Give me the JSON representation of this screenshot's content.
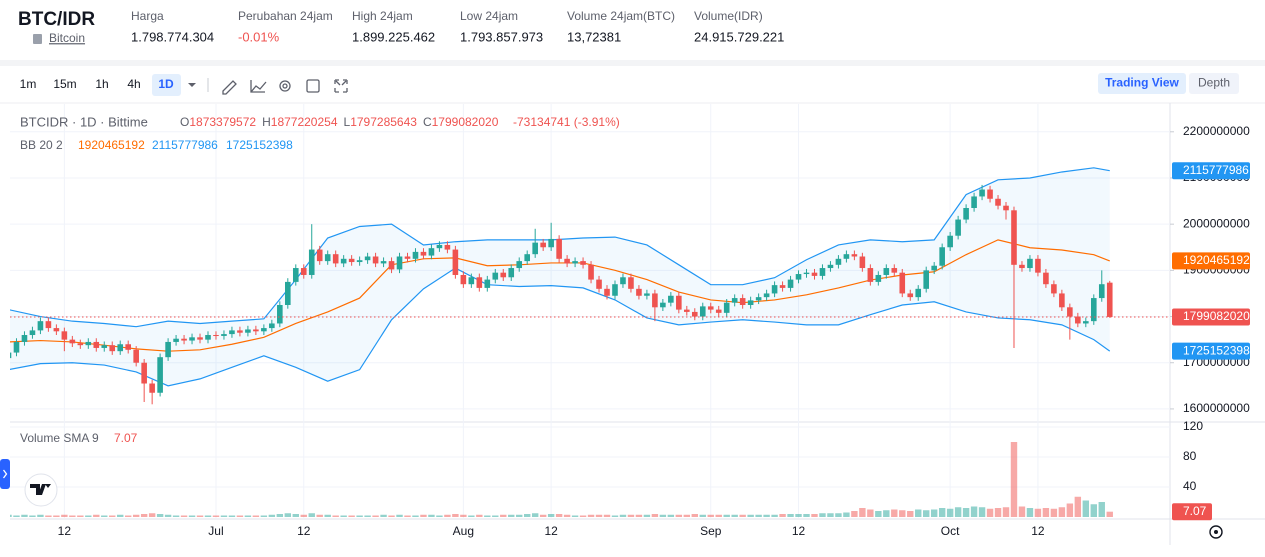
{
  "header": {
    "pair": "BTC/IDR",
    "asset": "Bitcoin",
    "stats": [
      {
        "label": "Harga",
        "value": "1.798.774.304"
      },
      {
        "label": "Perubahan 24jam",
        "value": "-0.01%"
      },
      {
        "label": "High 24jam",
        "value": "1.899.225.462"
      },
      {
        "label": "Low 24jam",
        "value": "1.793.857.973"
      },
      {
        "label": "Volume 24jam(BTC)",
        "value": "13,72381"
      },
      {
        "label": "Volume(IDR)",
        "value": "24.915.729.221"
      }
    ]
  },
  "toolbar": {
    "intervals": [
      "1m",
      "15m",
      "1h",
      "4h",
      "1D"
    ],
    "views": [
      "Trading View",
      "Depth"
    ]
  },
  "chart_data": {
    "type": "candlestick",
    "legend_title": "BTCIDR · 1D · Bittime",
    "ohlc_labels": [
      "O",
      "H",
      "L",
      "C"
    ],
    "change_text": "-73134741 (-3.91%)",
    "indicator_label": "BB 20 2",
    "volume_label": "Volume SMA 9",
    "up_color": "#26a69a",
    "down_color": "#ef5350",
    "band_colors": {
      "upper": "#2196f3",
      "middle": "#ff6d00",
      "lower": "#2196f3"
    },
    "candles": {
      "open": [
        1710000000.0,
        1722000000.0,
        1745000000.0,
        1760000000.0,
        1770000000.0,
        1790000000.0,
        1775000000.0,
        1768000000.0,
        1750000000.0,
        1742000000.0,
        1738000000.0,
        1745000000.0,
        1732000000.0,
        1738000000.0,
        1725000000.0,
        1740000000.0,
        1728000000.0,
        1700000000.0,
        1655000000.0,
        1635000000.0,
        1712000000.0,
        1745000000.0,
        1752000000.0,
        1748000000.0,
        1755000000.0,
        1750000000.0,
        1760000000.0,
        1758000000.0,
        1762000000.0,
        1770000000.0,
        1765000000.0,
        1772000000.0,
        1768000000.0,
        1775000000.0,
        1785000000.0,
        1825000000.0,
        1875000000.0,
        1905000000.0,
        1890000000.0,
        1945000000.0,
        1920000000.0,
        1935000000.0,
        1915000000.0,
        1925000000.0,
        1918000000.0,
        1922000000.0,
        1930000000.0,
        1915000000.0,
        1920000000.0,
        1902000000.0,
        1930000000.0,
        1925000000.0,
        1940000000.0,
        1932000000.0,
        1948000000.0,
        1955000000.0,
        1945000000.0,
        1890000000.0,
        1870000000.0,
        1885000000.0,
        1862000000.0,
        1880000000.0,
        1895000000.0,
        1885000000.0,
        1905000000.0,
        1920000000.0,
        1935000000.0,
        1960000000.0,
        1950000000.0,
        1968000000.0,
        1925000000.0,
        1915000000.0,
        1920000000.0,
        1912000000.0,
        1880000000.0,
        1860000000.0,
        1845000000.0,
        1870000000.0,
        1885000000.0,
        1860000000.0,
        1845000000.0,
        1850000000.0,
        1820000000.0,
        1830000000.0,
        1845000000.0,
        1815000000.0,
        1810000000.0,
        1800000000.0,
        1822000000.0,
        1815000000.0,
        1808000000.0,
        1830000000.0,
        1840000000.0,
        1825000000.0,
        1835000000.0,
        1842000000.0,
        1850000000.0,
        1868000000.0,
        1862000000.0,
        1880000000.0,
        1892000000.0,
        1895000000.0,
        1888000000.0,
        1905000000.0,
        1912000000.0,
        1925000000.0,
        1935000000.0,
        1930000000.0,
        1905000000.0,
        1875000000.0,
        1890000000.0,
        1905000000.0,
        1895000000.0,
        1850000000.0,
        1842000000.0,
        1860000000.0,
        1900000000.0,
        1910000000.0,
        1950000000.0,
        1975000000.0,
        2010000000.0,
        2035000000.0,
        2060000000.0,
        2075000000.0,
        2055000000.0,
        2040000000.0,
        2030000000.0,
        1912000000.0,
        1905000000.0,
        1925000000.0,
        1895000000.0,
        1870000000.0,
        1850000000.0,
        1820000000.0,
        1800000000.0,
        1785000000.0,
        1790000000.0,
        1840000000.0,
        1873379572
      ],
      "high": [
        1730000000.0,
        1753000000.0,
        1768000000.0,
        1778000000.0,
        1798000000.0,
        1798000000.0,
        1783000000.0,
        1776000000.0,
        1758000000.0,
        1750000000.0,
        1753000000.0,
        1753000000.0,
        1746000000.0,
        1746000000.0,
        1748000000.0,
        1748000000.0,
        1736000000.0,
        1708000000.0,
        1663000000.0,
        1720000000.0,
        1753000000.0,
        1760000000.0,
        1760000000.0,
        1763000000.0,
        1763000000.0,
        1768000000.0,
        1768000000.0,
        1770000000.0,
        1778000000.0,
        1778000000.0,
        1780000000.0,
        1780000000.0,
        1783000000.0,
        1793000000.0,
        1833000000.0,
        1883000000.0,
        1913000000.0,
        1913000000.0,
        2000000000.0,
        1953000000.0,
        1943000000.0,
        1943000000.0,
        1933000000.0,
        1933000000.0,
        1930000000.0,
        1938000000.0,
        1938000000.0,
        1928000000.0,
        1928000000.0,
        1938000000.0,
        1938000000.0,
        1948000000.0,
        1948000000.0,
        1956000000.0,
        1963000000.0,
        1963000000.0,
        1953000000.0,
        1898000000.0,
        1893000000.0,
        1893000000.0,
        1888000000.0,
        1903000000.0,
        1903000000.0,
        1913000000.0,
        1928000000.0,
        1943000000.0,
        1990000000.0,
        1968000000.0,
        2003000000.0,
        1976000000.0,
        1933000000.0,
        1928000000.0,
        1928000000.0,
        1920000000.0,
        1888000000.0,
        1868000000.0,
        1878000000.0,
        1893000000.0,
        1893000000.0,
        1868000000.0,
        1858000000.0,
        1858000000.0,
        1838000000.0,
        1853000000.0,
        1853000000.0,
        1823000000.0,
        1818000000.0,
        1830000000.0,
        1830000000.0,
        1823000000.0,
        1838000000.0,
        1848000000.0,
        1848000000.0,
        1843000000.0,
        1850000000.0,
        1858000000.0,
        1876000000.0,
        1876000000.0,
        1888000000.0,
        1900000000.0,
        1903000000.0,
        1903000000.0,
        1913000000.0,
        1920000000.0,
        1933000000.0,
        1943000000.0,
        1943000000.0,
        1938000000.0,
        1913000000.0,
        1898000000.0,
        1913000000.0,
        1913000000.0,
        1903000000.0,
        1858000000.0,
        1868000000.0,
        1908000000.0,
        1918000000.0,
        1958000000.0,
        1983000000.0,
        2018000000.0,
        2043000000.0,
        2068000000.0,
        2085000000.0,
        2083000000.0,
        2063000000.0,
        2048000000.0,
        2038000000.0,
        1920000000.0,
        1933000000.0,
        1933000000.0,
        1903000000.0,
        1878000000.0,
        1858000000.0,
        1828000000.0,
        1808000000.0,
        1798000000.0,
        1848000000.0,
        1900000000.0,
        1877220254
      ],
      "low": [
        1702000000.0,
        1714000000.0,
        1737000000.0,
        1752000000.0,
        1762000000.0,
        1767000000.0,
        1760000000.0,
        1725000000.0,
        1734000000.0,
        1730000000.0,
        1730000000.0,
        1724000000.0,
        1724000000.0,
        1717000000.0,
        1717000000.0,
        1720000000.0,
        1692000000.0,
        1615000000.0,
        1610000000.0,
        1627000000.0,
        1704000000.0,
        1737000000.0,
        1740000000.0,
        1740000000.0,
        1742000000.0,
        1742000000.0,
        1750000000.0,
        1750000000.0,
        1754000000.0,
        1757000000.0,
        1757000000.0,
        1760000000.0,
        1760000000.0,
        1767000000.0,
        1777000000.0,
        1817000000.0,
        1867000000.0,
        1882000000.0,
        1882000000.0,
        1912000000.0,
        1912000000.0,
        1907000000.0,
        1907000000.0,
        1910000000.0,
        1910000000.0,
        1914000000.0,
        1907000000.0,
        1907000000.0,
        1894000000.0,
        1894000000.0,
        1917000000.0,
        1917000000.0,
        1924000000.0,
        1924000000.0,
        1940000000.0,
        1937000000.0,
        1882000000.0,
        1862000000.0,
        1862000000.0,
        1854000000.0,
        1854000000.0,
        1872000000.0,
        1877000000.0,
        1877000000.0,
        1897000000.0,
        1912000000.0,
        1927000000.0,
        1942000000.0,
        1942000000.0,
        1917000000.0,
        1907000000.0,
        1907000000.0,
        1904000000.0,
        1872000000.0,
        1852000000.0,
        1837000000.0,
        1837000000.0,
        1862000000.0,
        1852000000.0,
        1837000000.0,
        1837000000.0,
        1790000000.0,
        1812000000.0,
        1822000000.0,
        1807000000.0,
        1802000000.0,
        1792000000.0,
        1792000000.0,
        1807000000.0,
        1800000000.0,
        1800000000.0,
        1822000000.0,
        1817000000.0,
        1817000000.0,
        1827000000.0,
        1834000000.0,
        1842000000.0,
        1854000000.0,
        1854000000.0,
        1872000000.0,
        1884000000.0,
        1880000000.0,
        1880000000.0,
        1897000000.0,
        1904000000.0,
        1917000000.0,
        1922000000.0,
        1897000000.0,
        1867000000.0,
        1867000000.0,
        1882000000.0,
        1887000000.0,
        1842000000.0,
        1834000000.0,
        1834000000.0,
        1852000000.0,
        1892000000.0,
        1902000000.0,
        1942000000.0,
        1967000000.0,
        2002000000.0,
        2027000000.0,
        2052000000.0,
        2047000000.0,
        2032000000.0,
        2010000000.0,
        1732000000.0,
        1897000000.0,
        1897000000.0,
        1887000000.0,
        1862000000.0,
        1842000000.0,
        1812000000.0,
        1750000000.0,
        1777000000.0,
        1777000000.0,
        1782000000.0,
        1832000000.0,
        1797285643
      ],
      "close": [
        1722000000.0,
        1745000000.0,
        1760000000.0,
        1770000000.0,
        1790000000.0,
        1775000000.0,
        1768000000.0,
        1750000000.0,
        1742000000.0,
        1738000000.0,
        1745000000.0,
        1732000000.0,
        1738000000.0,
        1725000000.0,
        1740000000.0,
        1728000000.0,
        1700000000.0,
        1655000000.0,
        1635000000.0,
        1712000000.0,
        1745000000.0,
        1752000000.0,
        1748000000.0,
        1755000000.0,
        1750000000.0,
        1760000000.0,
        1758000000.0,
        1762000000.0,
        1770000000.0,
        1765000000.0,
        1772000000.0,
        1768000000.0,
        1775000000.0,
        1785000000.0,
        1825000000.0,
        1875000000.0,
        1905000000.0,
        1890000000.0,
        1945000000.0,
        1920000000.0,
        1935000000.0,
        1915000000.0,
        1925000000.0,
        1918000000.0,
        1922000000.0,
        1930000000.0,
        1915000000.0,
        1920000000.0,
        1902000000.0,
        1930000000.0,
        1925000000.0,
        1940000000.0,
        1932000000.0,
        1948000000.0,
        1955000000.0,
        1945000000.0,
        1890000000.0,
        1870000000.0,
        1885000000.0,
        1862000000.0,
        1880000000.0,
        1895000000.0,
        1885000000.0,
        1905000000.0,
        1920000000.0,
        1935000000.0,
        1960000000.0,
        1950000000.0,
        1968000000.0,
        1925000000.0,
        1915000000.0,
        1920000000.0,
        1912000000.0,
        1880000000.0,
        1860000000.0,
        1845000000.0,
        1870000000.0,
        1885000000.0,
        1860000000.0,
        1845000000.0,
        1850000000.0,
        1820000000.0,
        1830000000.0,
        1845000000.0,
        1815000000.0,
        1810000000.0,
        1800000000.0,
        1822000000.0,
        1815000000.0,
        1808000000.0,
        1830000000.0,
        1840000000.0,
        1825000000.0,
        1835000000.0,
        1842000000.0,
        1850000000.0,
        1868000000.0,
        1862000000.0,
        1880000000.0,
        1892000000.0,
        1895000000.0,
        1888000000.0,
        1905000000.0,
        1912000000.0,
        1925000000.0,
        1935000000.0,
        1930000000.0,
        1905000000.0,
        1875000000.0,
        1890000000.0,
        1905000000.0,
        1895000000.0,
        1850000000.0,
        1842000000.0,
        1860000000.0,
        1900000000.0,
        1910000000.0,
        1950000000.0,
        1975000000.0,
        2010000000.0,
        2035000000.0,
        2060000000.0,
        2075000000.0,
        2055000000.0,
        2040000000.0,
        2030000000.0,
        1912000000.0,
        1905000000.0,
        1925000000.0,
        1895000000.0,
        1870000000.0,
        1850000000.0,
        1820000000.0,
        1800000000.0,
        1785000000.0,
        1790000000.0,
        1840000000.0,
        1870000000.0,
        1799082020
      ]
    },
    "volume": [
      3,
      2,
      3,
      2,
      3,
      2,
      2,
      3,
      2,
      2,
      2,
      3,
      2,
      2,
      3,
      2,
      3,
      4,
      5,
      4,
      3,
      2,
      2,
      2,
      2,
      2,
      2,
      2,
      2,
      2,
      2,
      2,
      2,
      3,
      4,
      5,
      4,
      3,
      5,
      3,
      3,
      2,
      2,
      2,
      2,
      2,
      2,
      3,
      2,
      3,
      2,
      2,
      3,
      3,
      2,
      3,
      4,
      3,
      2,
      3,
      2,
      2,
      3,
      3,
      3,
      4,
      5,
      3,
      4,
      4,
      3,
      2,
      2,
      3,
      3,
      3,
      2,
      3,
      3,
      3,
      3,
      4,
      3,
      3,
      3,
      3,
      4,
      3,
      3,
      3,
      3,
      3,
      3,
      3,
      3,
      3,
      3,
      4,
      4,
      4,
      4,
      4,
      5,
      5,
      5,
      6,
      8,
      12,
      10,
      8,
      9,
      10,
      9,
      8,
      10,
      9,
      10,
      12,
      11,
      13,
      12,
      14,
      13,
      11,
      12,
      13,
      100,
      14,
      12,
      11,
      12,
      11,
      13,
      18,
      27,
      22,
      17,
      20,
      7.07
    ],
    "bands": {
      "x": [
        0,
        4,
        8,
        12,
        16,
        20,
        24,
        28,
        32,
        36,
        40,
        44,
        48,
        52,
        56,
        60,
        64,
        68,
        72,
        76,
        80,
        84,
        88,
        92,
        96,
        100,
        104,
        108,
        112,
        116,
        120,
        124,
        128,
        132,
        136,
        138
      ],
      "upper": [
        1815000000.0,
        1800000000.0,
        1790000000.0,
        1785000000.0,
        1778000000.0,
        1790000000.0,
        1785000000.0,
        1790000000.0,
        1795000000.0,
        1880000000.0,
        1970000000.0,
        1995000000.0,
        2000000000.0,
        1955000000.0,
        1962000000.0,
        1966000000.0,
        1966000000.0,
        1966000000.0,
        1970000000.0,
        1972000000.0,
        1955000000.0,
        1912000000.0,
        1869000000.0,
        1869000000.0,
        1884000000.0,
        1923000000.0,
        1955000000.0,
        1966000000.0,
        1962000000.0,
        1966000000.0,
        2064000000.0,
        2096000000.0,
        2100000000.0,
        2113000000.0,
        2122000000.0,
        2115777986
      ],
      "middle": [
        1745000000.0,
        1748000000.0,
        1745000000.0,
        1738000000.0,
        1730000000.0,
        1725000000.0,
        1728000000.0,
        1740000000.0,
        1755000000.0,
        1785000000.0,
        1810000000.0,
        1840000000.0,
        1912000000.0,
        1925000000.0,
        1927000000.0,
        1910000000.0,
        1912000000.0,
        1916000000.0,
        1916000000.0,
        1900000000.0,
        1880000000.0,
        1853000000.0,
        1836000000.0,
        1830000000.0,
        1836000000.0,
        1847000000.0,
        1862000000.0,
        1879000000.0,
        1890000000.0,
        1897000000.0,
        1934000000.0,
        1966000000.0,
        1949000000.0,
        1944000000.0,
        1934000000.0,
        1920465192
      ],
      "lower": [
        1685000000.0,
        1698000000.0,
        1700000000.0,
        1695000000.0,
        1680000000.0,
        1650000000.0,
        1665000000.0,
        1690000000.0,
        1715000000.0,
        1690000000.0,
        1660000000.0,
        1685000000.0,
        1793000000.0,
        1860000000.0,
        1905000000.0,
        1869000000.0,
        1865000000.0,
        1867000000.0,
        1862000000.0,
        1836000000.0,
        1797000000.0,
        1782000000.0,
        1788000000.0,
        1793000000.0,
        1788000000.0,
        1782000000.0,
        1782000000.0,
        1804000000.0,
        1825000000.0,
        1832000000.0,
        1810000000.0,
        1797000000.0,
        1793000000.0,
        1782000000.0,
        1750000000.0,
        1725152398
      ]
    },
    "xlim": [
      0,
      145.5
    ],
    "xticks": [
      {
        "value": 7,
        "label": "12"
      },
      {
        "value": 26,
        "label": "Jul"
      },
      {
        "value": 37,
        "label": "12"
      },
      {
        "value": 57,
        "label": "Aug"
      },
      {
        "value": 68,
        "label": "12"
      },
      {
        "value": 88,
        "label": "Sep"
      },
      {
        "value": 99,
        "label": "12"
      },
      {
        "value": 118,
        "label": "Oct"
      },
      {
        "value": 129,
        "label": "12"
      }
    ],
    "ylim": [
      1576000000,
      2258000000
    ],
    "yticks": [
      1600000000,
      1700000000,
      1800000000,
      1900000000,
      2000000000,
      2100000000,
      2200000000
    ],
    "volume_ylim": [
      0,
      124
    ],
    "volume_yticks": [
      40,
      80,
      120
    ],
    "grid": true
  }
}
